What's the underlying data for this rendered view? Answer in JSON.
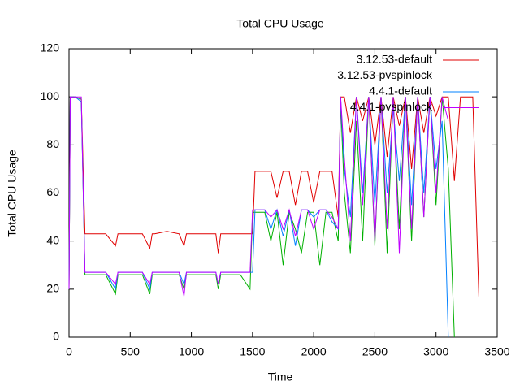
{
  "chart_data": {
    "type": "line",
    "title": "Total CPU Usage",
    "x_label": "Time",
    "y_label": "Total CPU Usage",
    "x": [
      0,
      10,
      50,
      100,
      130,
      200,
      300,
      380,
      400,
      450,
      500,
      600,
      660,
      680,
      700,
      800,
      900,
      940,
      960,
      1000,
      1100,
      1200,
      1220,
      1240,
      1300,
      1400,
      1480,
      1500,
      1520,
      1600,
      1650,
      1700,
      1750,
      1800,
      1850,
      1900,
      1950,
      2000,
      2050,
      2100,
      2150,
      2200,
      2220,
      2250,
      2300,
      2350,
      2400,
      2450,
      2500,
      2550,
      2600,
      2650,
      2700,
      2750,
      2800,
      2850,
      2900,
      2950,
      3000,
      3050,
      3100,
      3150,
      3200,
      3250,
      3300,
      3350
    ],
    "series": [
      {
        "name": "3.12.53-default",
        "color": "#e00000",
        "values": [
          20,
          100,
          100,
          99,
          43,
          43,
          43,
          38,
          43,
          43,
          43,
          43,
          37,
          43,
          43,
          44,
          43,
          38,
          43,
          43,
          43,
          43,
          35,
          43,
          43,
          43,
          43,
          43,
          69,
          69,
          69,
          58,
          69,
          69,
          55,
          69,
          69,
          56,
          69,
          69,
          69,
          50,
          100,
          100,
          85,
          100,
          90,
          100,
          80,
          100,
          75,
          100,
          88,
          100,
          70,
          100,
          85,
          100,
          92,
          100,
          100,
          65,
          100,
          100,
          100,
          17
        ]
      },
      {
        "name": "3.12.53-pvspinlock",
        "color": "#00b000",
        "values": [
          20,
          100,
          100,
          99,
          26,
          26,
          26,
          18,
          26,
          26,
          26,
          26,
          18,
          26,
          26,
          26,
          26,
          20,
          26,
          26,
          26,
          26,
          20,
          26,
          26,
          26,
          20,
          52,
          52,
          52,
          40,
          52,
          30,
          52,
          45,
          35,
          52,
          52,
          30,
          52,
          52,
          40,
          98,
          60,
          35,
          90,
          40,
          100,
          38,
          100,
          35,
          100,
          45,
          100,
          40,
          100,
          50,
          100,
          55,
          100,
          70,
          0,
          null,
          null,
          null,
          null
        ]
      },
      {
        "name": "4.4.1-default",
        "color": "#0080ff",
        "values": [
          20,
          100,
          100,
          98,
          27,
          27,
          27,
          20,
          27,
          27,
          27,
          27,
          20,
          27,
          27,
          27,
          27,
          22,
          27,
          27,
          27,
          27,
          22,
          27,
          27,
          27,
          27,
          27,
          53,
          53,
          45,
          53,
          42,
          53,
          38,
          53,
          53,
          50,
          53,
          53,
          48,
          45,
          100,
          70,
          50,
          100,
          60,
          100,
          55,
          100,
          60,
          95,
          65,
          100,
          55,
          100,
          60,
          100,
          70,
          90,
          0,
          null,
          null,
          null,
          null,
          null
        ]
      },
      {
        "name": "4.4.1-pvspinlock",
        "color": "#c000ff",
        "values": [
          20,
          100,
          100,
          100,
          27,
          27,
          27,
          22,
          27,
          27,
          27,
          27,
          22,
          27,
          27,
          27,
          27,
          17,
          27,
          27,
          27,
          27,
          22,
          27,
          27,
          27,
          27,
          53,
          53,
          53,
          50,
          53,
          45,
          53,
          42,
          53,
          53,
          45,
          53,
          53,
          50,
          45,
          100,
          75,
          40,
          100,
          55,
          100,
          40,
          100,
          45,
          100,
          35,
          100,
          45,
          100,
          50,
          100,
          60,
          100,
          90,
          null,
          null,
          null,
          null,
          null
        ]
      }
    ],
    "xlim": [
      0,
      3500
    ],
    "xticks": [
      0,
      500,
      1000,
      1500,
      2000,
      2500,
      3000,
      3500
    ],
    "ylim": [
      0,
      120
    ],
    "yticks": [
      0,
      20,
      40,
      60,
      80,
      100,
      120
    ],
    "legend": "top-right"
  }
}
